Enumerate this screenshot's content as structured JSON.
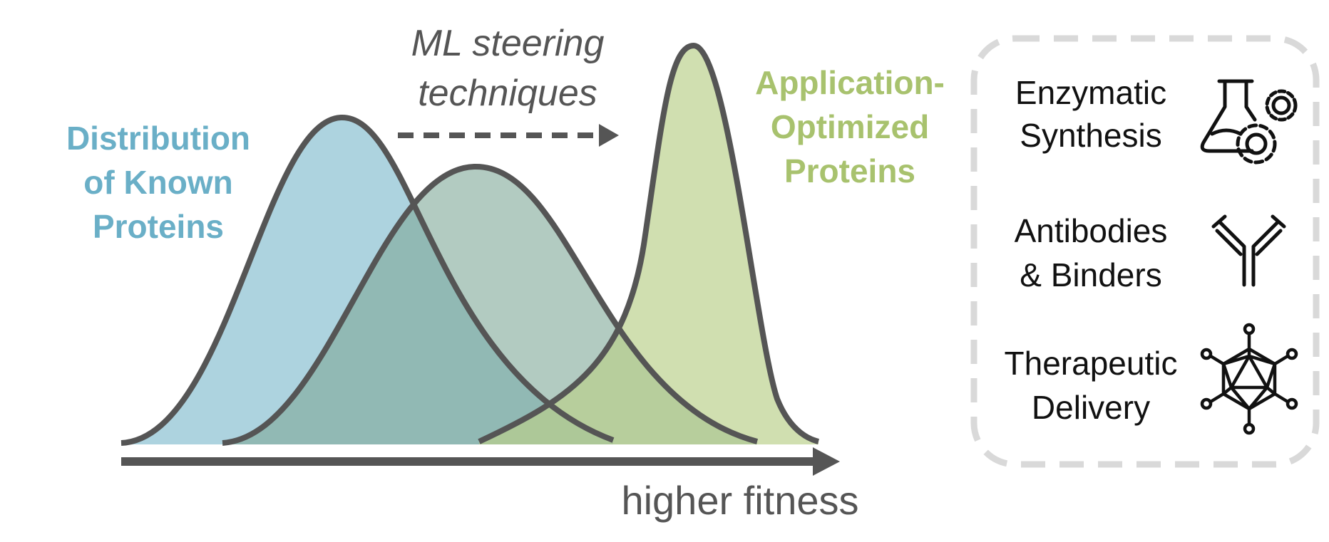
{
  "labels": {
    "known_line1": "Distribution",
    "known_line2": "of Known",
    "known_line3": "Proteins",
    "ml_line1": "ML steering",
    "ml_line2": "techniques",
    "opt_line1": "Application-",
    "opt_line2": "Optimized",
    "opt_line3": "Proteins",
    "axis": "higher fitness"
  },
  "applications": [
    {
      "line1": "Enzymatic",
      "line2": "Synthesis",
      "icon": "flask-gears-icon"
    },
    {
      "line1": "Antibodies",
      "line2": "& Binders",
      "icon": "antibody-icon"
    },
    {
      "line1": "Therapeutic",
      "line2": "Delivery",
      "icon": "capsid-icon"
    }
  ],
  "colors": {
    "known": "#6aafc7",
    "intermediate": "#7fa897",
    "optimized": "#a8c26e",
    "outline": "#555555",
    "panel_border": "#d9d9d9"
  }
}
